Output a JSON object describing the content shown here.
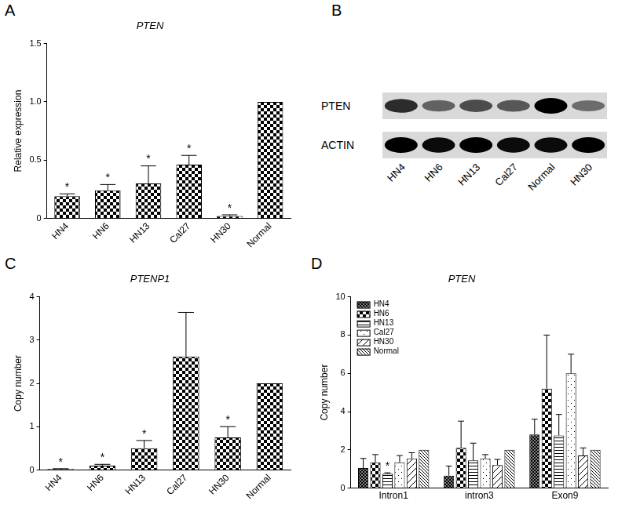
{
  "chart_data": [
    {
      "panel": "A",
      "type": "bar",
      "title": "PTEN",
      "y_label": "Relative expression",
      "categories": [
        "HN4",
        "HN6",
        "HN13",
        "Cal27",
        "HN30",
        "Normal"
      ],
      "values": [
        0.19,
        0.24,
        0.3,
        0.46,
        0.02,
        1.0
      ],
      "error": [
        0.02,
        0.05,
        0.15,
        0.08,
        0.01,
        null
      ],
      "annotations": [
        "*",
        "*",
        "*",
        "*",
        "*",
        null
      ],
      "color": "#000000",
      "ylim": [
        0,
        1.5
      ],
      "yticks": [
        0,
        0.5,
        {
          "value": 1,
          "label": "1.0"
        },
        1.5
      ],
      "grid": false
    },
    {
      "panel": "C",
      "type": "bar",
      "title": "PTENP1",
      "y_label": "Copy number",
      "categories": [
        "HN4",
        "HN6",
        "HN13",
        "Cal27",
        "HN30",
        "Normal"
      ],
      "values": [
        0.02,
        0.1,
        0.5,
        2.62,
        0.75,
        2
      ],
      "error": [
        0.01,
        0.03,
        0.18,
        1.02,
        0.25,
        null
      ],
      "annotations": [
        "*",
        "*",
        "*",
        null,
        "*",
        null
      ],
      "color": "#000000",
      "ylim": [
        0,
        4
      ],
      "yticks": [
        0,
        1,
        2,
        3,
        4
      ],
      "grid": false
    },
    {
      "panel": "D",
      "type": "bar",
      "title": "PTEN",
      "y_label": "Copy number",
      "categories": [
        "Intron1",
        "intron3",
        "Exon9"
      ],
      "series": [
        {
          "name": "HN4",
          "color": "#000000",
          "values": [
            1.05,
            0.65,
            2.8
          ],
          "error": [
            0.5,
            0.5,
            0.8
          ],
          "annotations": [
            null,
            null,
            null
          ]
        },
        {
          "name": "HN6",
          "color": "#000000",
          "values": [
            1.35,
            2.1,
            5.2
          ],
          "error": [
            0.4,
            1.4,
            2.8
          ],
          "annotations": [
            null,
            null,
            null
          ]
        },
        {
          "name": "HN13",
          "color": "#000000",
          "values": [
            0.75,
            1.45,
            2.75
          ],
          "error": [
            0.05,
            0.9,
            1.1
          ],
          "annotations": [
            "*",
            null,
            null
          ]
        },
        {
          "name": "Cal27",
          "color": "#000000",
          "values": [
            1.35,
            1.55,
            6.0
          ],
          "error": [
            0.35,
            0.2,
            1.0
          ],
          "annotations": [
            null,
            null,
            null
          ]
        },
        {
          "name": "HN30",
          "color": "#000000",
          "values": [
            1.55,
            1.2,
            1.7
          ],
          "error": [
            0.3,
            0.3,
            0.4
          ],
          "annotations": [
            null,
            null,
            null
          ]
        },
        {
          "name": "Normal",
          "color": "#000000",
          "values": [
            2,
            2,
            2
          ],
          "error": [
            null,
            null,
            null
          ],
          "annotations": [
            null,
            null,
            null
          ]
        }
      ],
      "ylim": [
        0,
        10
      ],
      "yticks": [
        0,
        2,
        4,
        6,
        8,
        10
      ],
      "grid": false,
      "legend": "top-left"
    }
  ],
  "blot": {
    "panel": "B",
    "lanes": [
      "HN4",
      "HN6",
      "HN13",
      "Cal27",
      "Normal",
      "HN30"
    ],
    "rows": [
      {
        "label": "PTEN",
        "intensity": [
          0.8,
          0.55,
          0.65,
          0.6,
          1.0,
          0.5
        ]
      },
      {
        "label": "ACTIN",
        "intensity": [
          1.0,
          0.95,
          1.0,
          0.95,
          0.95,
          1.0
        ]
      }
    ]
  }
}
